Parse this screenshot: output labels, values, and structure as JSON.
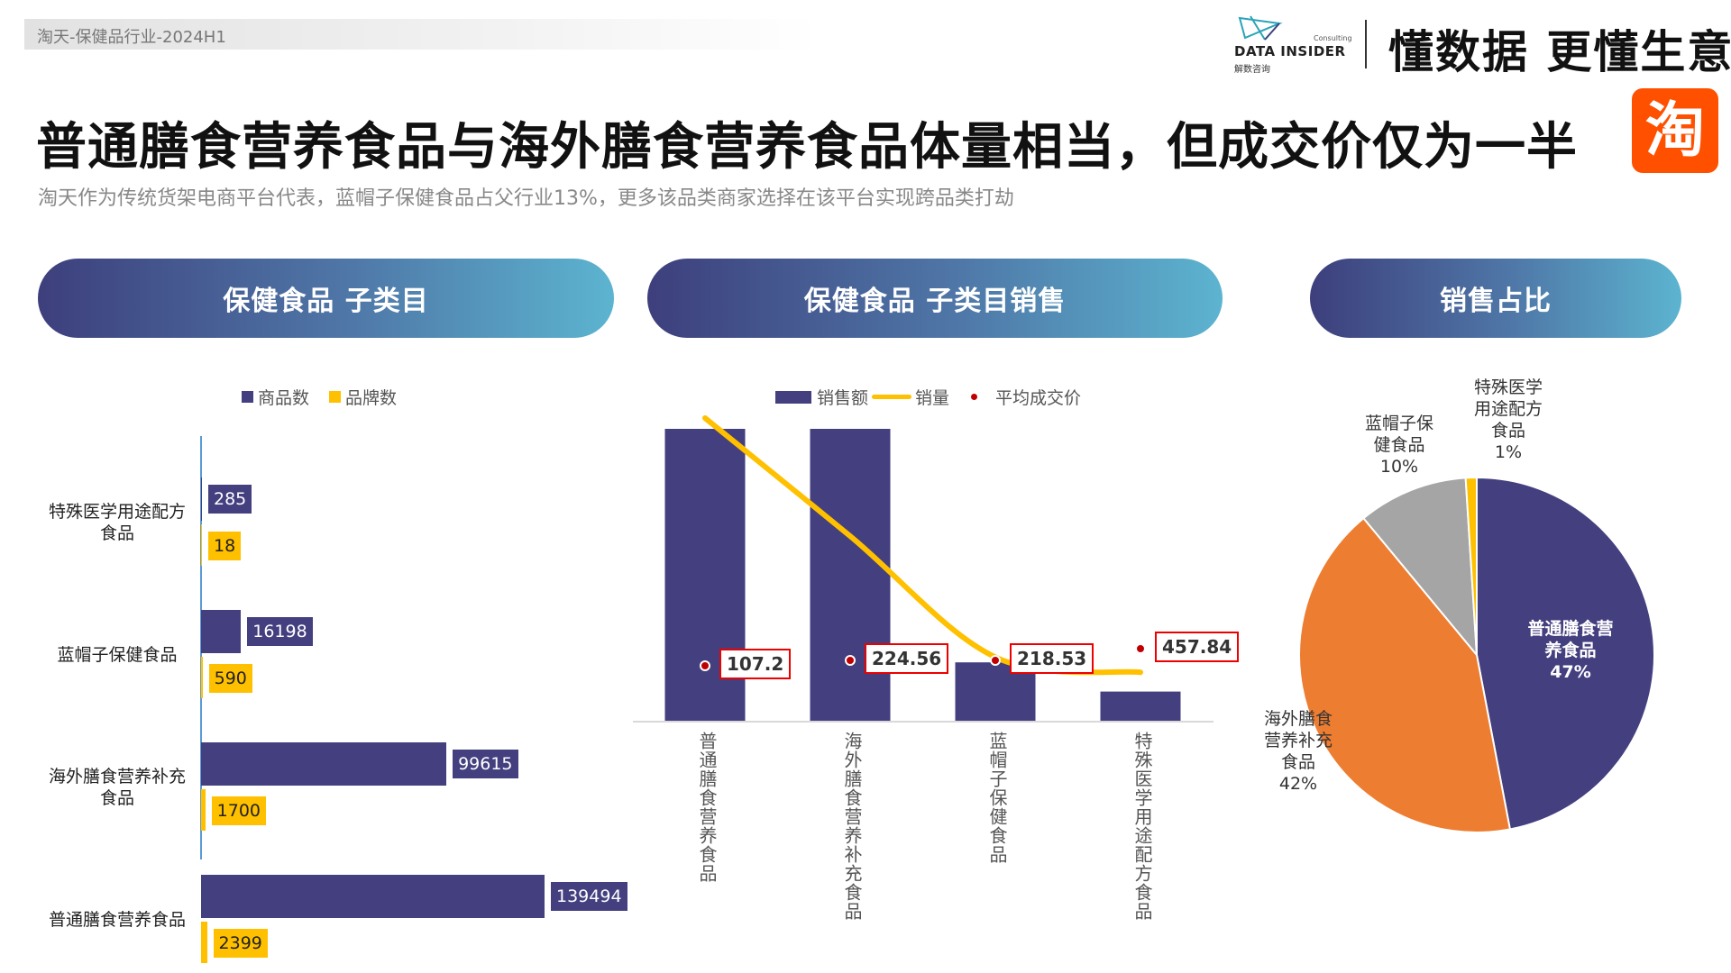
{
  "header": {
    "tag": "淘天-保健品行业-2024H1",
    "logo_name": "DATA INSIDER",
    "logo_sub": "解数咨询",
    "logo_consulting": "Consulting",
    "slogan": "懂数据 更懂生意",
    "platform_icon": "淘",
    "title": "普通膳食营养食品与海外膳食营养食品体量相当，但成交价仅为一半",
    "subtitle": "淘天作为传统货架电商平台代表，蓝帽子保健食品占父行业13%，更多该品类商家选择在该平台实现跨品类打劫"
  },
  "sections": [
    "保健食品 子类目",
    "保健食品 子类目销售",
    "销售占比"
  ],
  "colors": {
    "purple": "#443f7f",
    "yellow": "#ffc000",
    "orange": "#ed7d31",
    "gray": "#a5a5a5",
    "red": "#c00000"
  },
  "chart_data": [
    {
      "type": "bar",
      "orientation": "horizontal",
      "categories": [
        "特殊医学用途配方食品",
        "蓝帽子保健食品",
        "海外膳食营养补充食品",
        "普通膳食营养食品"
      ],
      "series": [
        {
          "name": "商品数",
          "values": [
            285,
            16198,
            99615,
            139494
          ]
        },
        {
          "name": "品牌数",
          "values": [
            18,
            590,
            1700,
            2399
          ]
        }
      ],
      "legend": "top"
    },
    {
      "type": "bar",
      "categories": [
        "普通膳食营养食品",
        "海外膳食营养补充食品",
        "蓝帽子保健食品",
        "特殊医学用途配方食品"
      ],
      "series": [
        {
          "name": "销售额",
          "type": "bar",
          "values_relative": [
            100,
            100,
            20,
            10
          ]
        },
        {
          "name": "销量",
          "type": "line",
          "values_relative": [
            100,
            61,
            21,
            16
          ]
        },
        {
          "name": "平均成交价",
          "type": "scatter",
          "values": [
            107.2,
            224.56,
            218.53,
            457.84
          ],
          "labels": [
            "107.2",
            "224.56",
            "218.53",
            "457.84"
          ]
        }
      ],
      "legend": "top"
    },
    {
      "type": "pie",
      "slices": [
        {
          "label": "普通膳食营养食品",
          "value": 47,
          "text": "47%"
        },
        {
          "label": "海外膳食营养补充食品",
          "value": 42,
          "text": "42%"
        },
        {
          "label": "蓝帽子保健食品",
          "value": 10,
          "text": "10%"
        },
        {
          "label": "特殊医学用途配方食品",
          "value": 1,
          "text": "1%"
        }
      ]
    }
  ]
}
